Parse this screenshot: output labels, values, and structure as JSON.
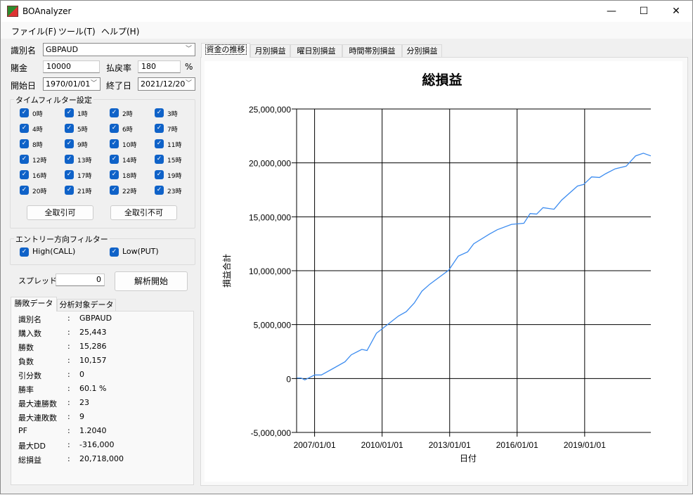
{
  "window": {
    "title": "BOAnalyzer",
    "minimize": "—",
    "maximize": "☐",
    "close": "✕"
  },
  "menu": [
    "ファイル(F)",
    "ツール(T)",
    "ヘルプ(H)"
  ],
  "form": {
    "symbol_label": "識別名",
    "symbol_value": "GBPAUD",
    "bet_label": "賭金",
    "bet_value": "10000",
    "payout_label": "払戻率",
    "payout_value": "180",
    "payout_unit": "%",
    "start_label": "開始日",
    "start_value": "1970/01/01",
    "end_label": "終了日",
    "end_value": "2021/12/20"
  },
  "time_filter": {
    "title": "タイムフィルター設定",
    "hours": [
      "0時",
      "1時",
      "2時",
      "3時",
      "4時",
      "5時",
      "6時",
      "7時",
      "8時",
      "9時",
      "10時",
      "11時",
      "12時",
      "13時",
      "14時",
      "15時",
      "16時",
      "17時",
      "18時",
      "19時",
      "20時",
      "21時",
      "22時",
      "23時"
    ],
    "all_on": "全取引可",
    "all_off": "全取引不可"
  },
  "entry_filter": {
    "title": "エントリー方向フィルター",
    "high": "High(CALL)",
    "low": "Low(PUT)"
  },
  "spread": {
    "label": "スプレッド",
    "value": "0"
  },
  "analyze_button": "解析開始",
  "result_tabs": [
    "勝敗データ",
    "分析対象データ"
  ],
  "results": [
    {
      "label": "識別名",
      "value": "GBPAUD"
    },
    {
      "label": "購入数",
      "value": "25,443"
    },
    {
      "label": "勝数",
      "value": "15,286"
    },
    {
      "label": "負数",
      "value": "10,157"
    },
    {
      "label": "引分数",
      "value": "0"
    },
    {
      "label": "勝率",
      "value": "60.1 %"
    },
    {
      "label": "最大連勝数",
      "value": "23"
    },
    {
      "label": "最大連敗数",
      "value": "9"
    },
    {
      "label": "PF",
      "value": "1.2040"
    },
    {
      "label": "最大DD",
      "value": "-316,000"
    },
    {
      "label": "総損益",
      "value": "20,718,000"
    }
  ],
  "chart_tabs": [
    "資金の推移",
    "月別損益",
    "曜日別損益",
    "時間帯別損益",
    "分別損益"
  ],
  "chart_data": {
    "type": "line",
    "title": "総損益",
    "xlabel": "日付",
    "ylabel": "損益合計",
    "xlim": [
      "2006-03-15",
      "2021-12-10"
    ],
    "ylim": [
      -5000000,
      25000000
    ],
    "yticks": [
      "-5,000,000",
      "0",
      "5,000,000",
      "10,000,000",
      "15,000,000",
      "20,000,000",
      "25,000,000"
    ],
    "ytick_values": [
      -5000000,
      0,
      5000000,
      10000000,
      15000000,
      20000000,
      25000000
    ],
    "xticks": [
      "2007/01/01",
      "2010/01/01",
      "2013/01/01",
      "2016/01/01",
      "2019/01/01"
    ],
    "grid": true,
    "line_color": "#3c8cf0",
    "series": [
      {
        "x": [
          "2006-03-20",
          "2006-05-26",
          "2006-07-27",
          "2007-01-01",
          "2007-04-20",
          "2007-10-20",
          "2008-05-08",
          "2008-08-18",
          "2009-02-06",
          "2009-05-01",
          "2009-10-01",
          "2010-01-12",
          "2010-09-24",
          "2011-01-26",
          "2011-06-07",
          "2011-10-09",
          "2012-02-14",
          "2012-12-17",
          "2013-05-20",
          "2013-10-20",
          "2014-01-26",
          "2014-10-08",
          "2015-02-14",
          "2015-10-01",
          "2016-04-20",
          "2016-07-31",
          "2016-11-13",
          "2017-02-24",
          "2017-08-22",
          "2017-12-24",
          "2018-09-06",
          "2018-12-17",
          "2019-04-23",
          "2019-08-29",
          "2019-12-09",
          "2020-05-11",
          "2020-11-06",
          "2021-04-06",
          "2021-08-11",
          "2021-12-10"
        ],
        "y": [
          50000,
          50000,
          -130000,
          330000,
          330000,
          900000,
          1550000,
          2200000,
          2700000,
          2600000,
          4200000,
          4650000,
          5800000,
          6200000,
          7000000,
          8100000,
          8750000,
          10050000,
          11350000,
          11750000,
          12500000,
          13400000,
          13800000,
          14300000,
          14400000,
          15300000,
          15250000,
          15850000,
          15700000,
          16550000,
          17850000,
          18000000,
          18700000,
          18650000,
          19000000,
          19450000,
          19700000,
          20650000,
          20900000,
          20650000
        ]
      }
    ]
  }
}
